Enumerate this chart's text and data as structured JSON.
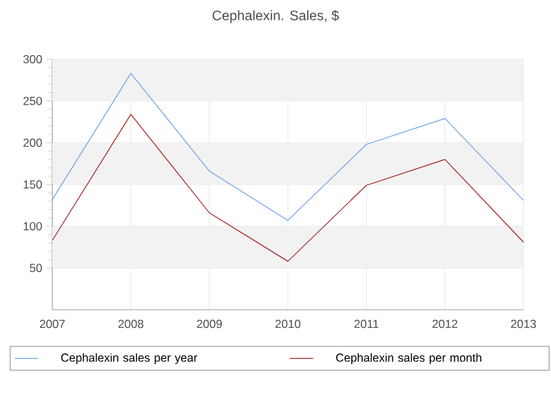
{
  "chart_data": {
    "type": "line",
    "title": "Cephalexin. Sales, $",
    "x": [
      2007,
      2008,
      2009,
      2010,
      2011,
      2012,
      2013
    ],
    "series": [
      {
        "name": "Cephalexin sales per year",
        "color": "#6d9eeb",
        "values": [
          132,
          283,
          166,
          107,
          198,
          229,
          131
        ]
      },
      {
        "name": "Cephalexin sales per month",
        "color": "#a61c1c",
        "values": [
          83,
          234,
          116,
          58,
          149,
          180,
          81
        ]
      }
    ],
    "xlim": [
      2007,
      2013
    ],
    "xticks": [
      2007,
      2008,
      2009,
      2010,
      2011,
      2012,
      2013
    ],
    "ylim": [
      0,
      300
    ],
    "yticks": [
      50,
      100,
      150,
      200,
      250,
      300
    ],
    "bands": [
      {
        "axis": "y",
        "from": 50,
        "to": 100,
        "color": "#f2f2f2"
      },
      {
        "axis": "y",
        "from": 150,
        "to": 200,
        "color": "#f2f2f2"
      },
      {
        "axis": "y",
        "from": 250,
        "to": 300,
        "color": "#f2f2f2"
      }
    ],
    "grid": true,
    "legend": "bottom",
    "marker": "none",
    "line_style": "solid"
  }
}
